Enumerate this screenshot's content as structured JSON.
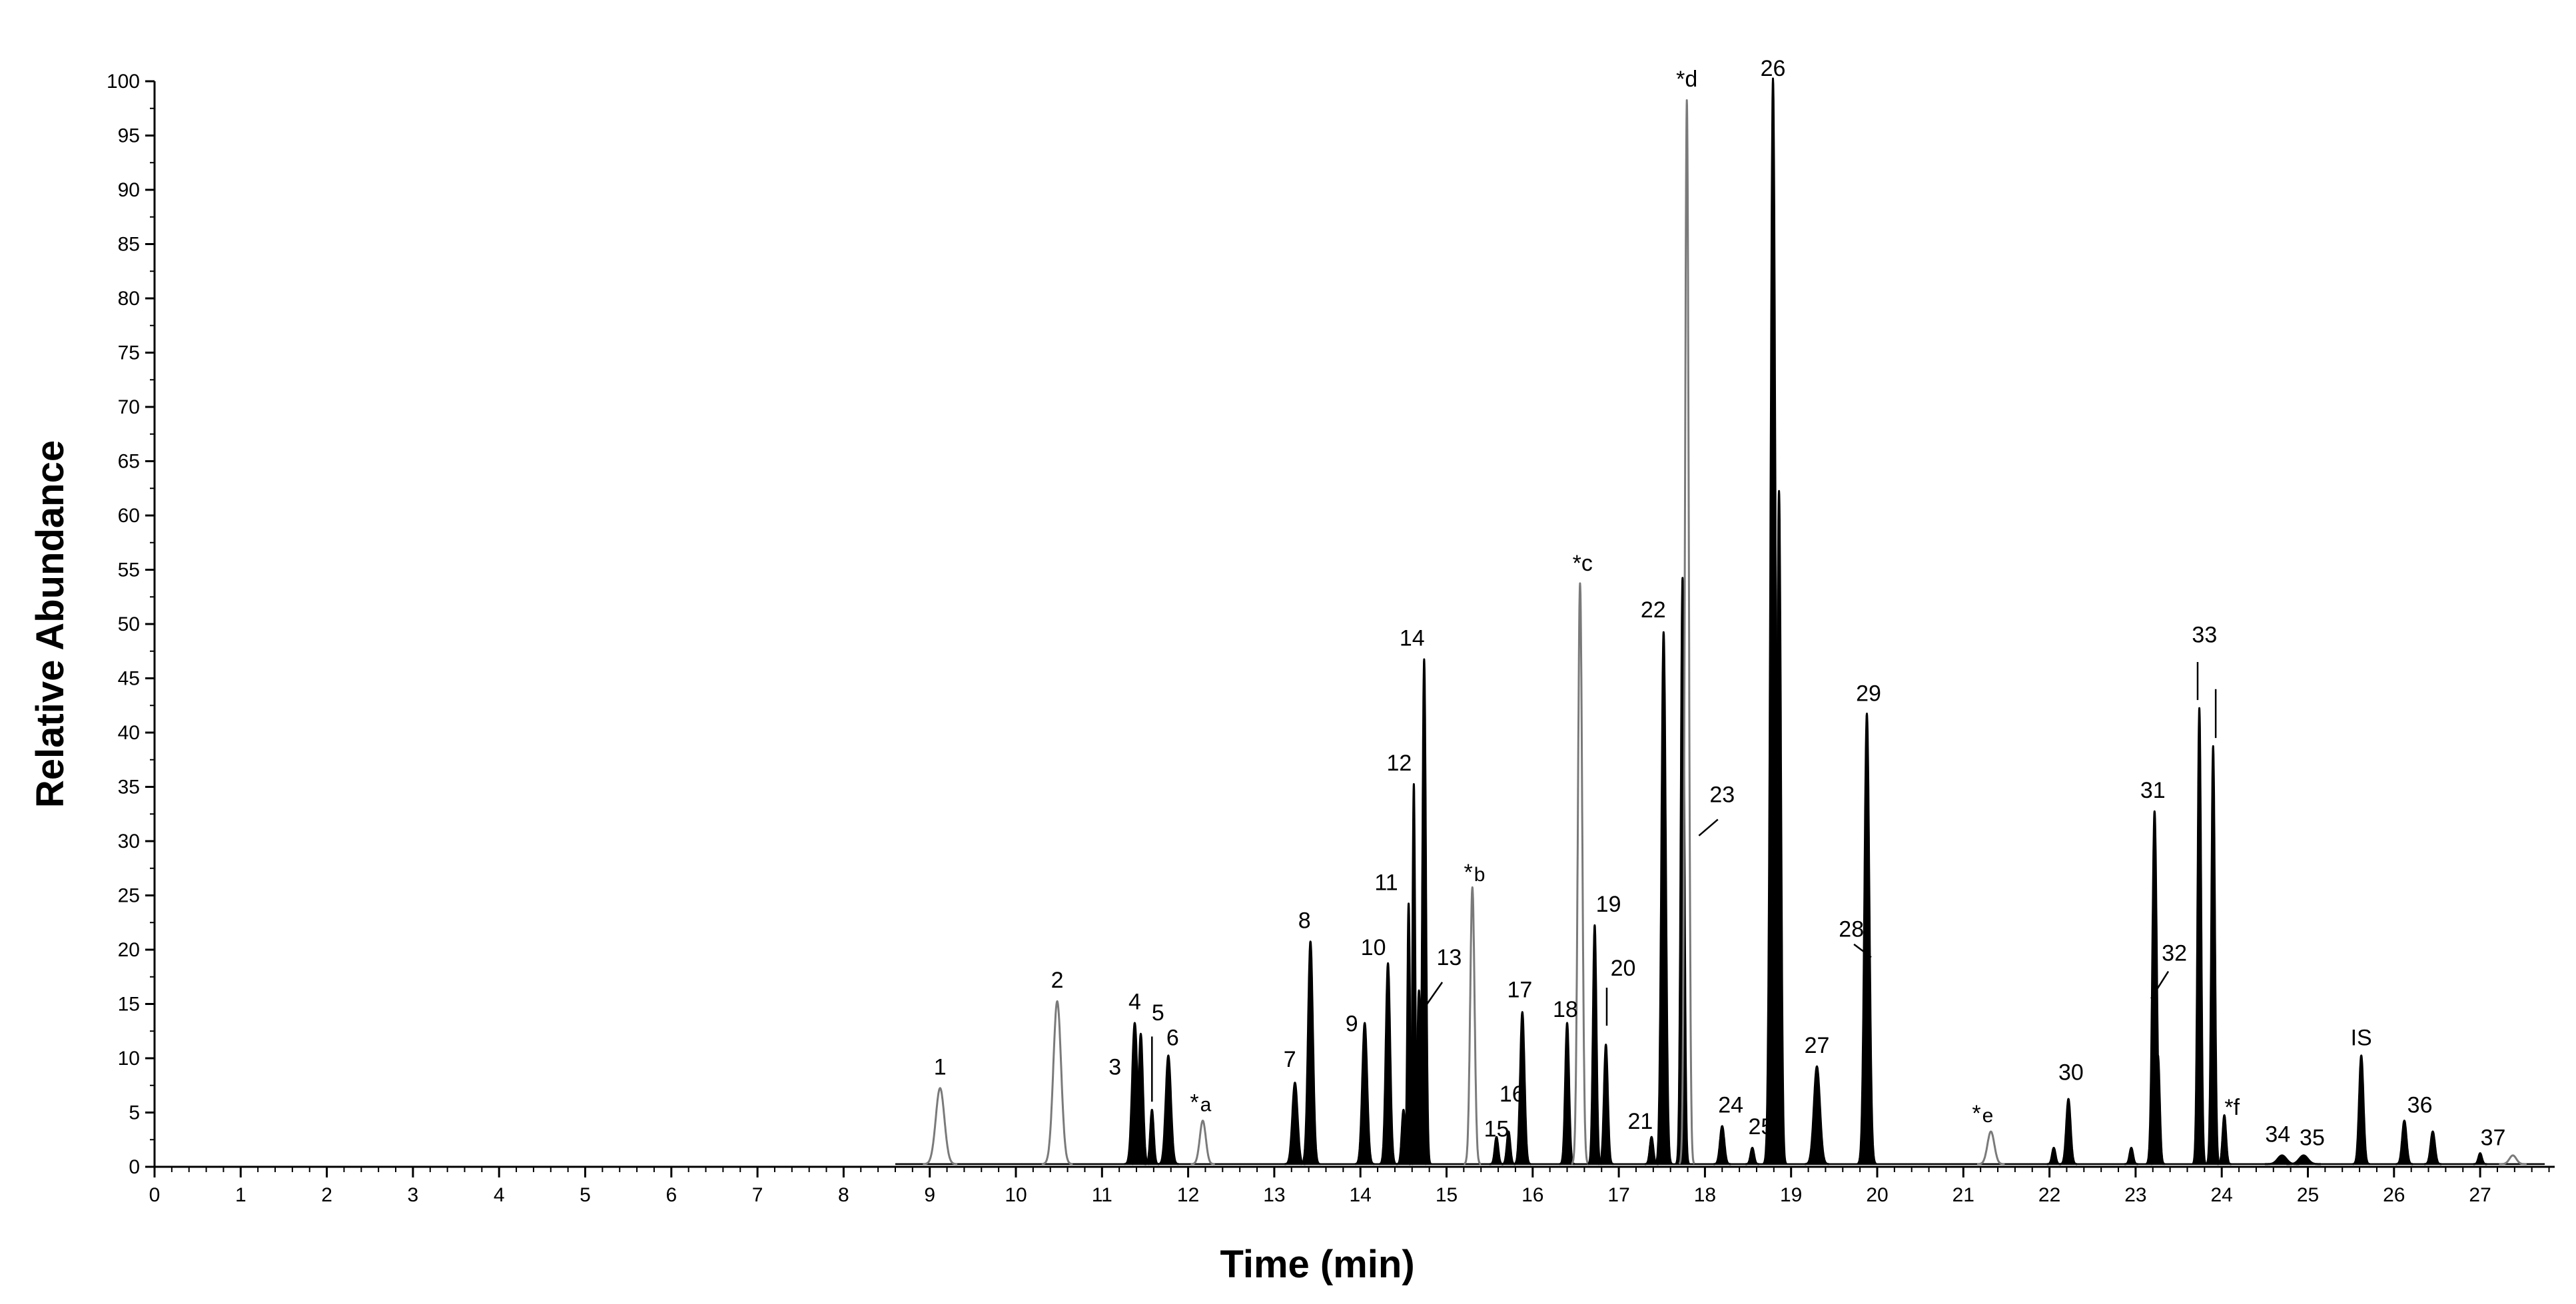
{
  "chart_data": {
    "type": "line",
    "xlabel": "Time (min)",
    "ylabel": "Relative Abundance",
    "xlim": [
      0,
      28
    ],
    "ylim": [
      0,
      100
    ],
    "x_ticks": [
      "0",
      "1",
      "2",
      "3",
      "4",
      "5",
      "6",
      "7",
      "8",
      "9",
      "10",
      "11",
      "12",
      "13",
      "14",
      "15",
      "16",
      "17",
      "18",
      "19",
      "20",
      "21",
      "22",
      "23",
      "24",
      "25",
      "26",
      "27"
    ],
    "y_ticks": [
      "0",
      "5",
      "10",
      "15",
      "20",
      "25",
      "30",
      "35",
      "40",
      "45",
      "50",
      "55",
      "60",
      "65",
      "70",
      "75",
      "80",
      "85",
      "90",
      "95",
      "100"
    ],
    "colors": {
      "asterisk_peaks": "#7a7a7a",
      "compound_peaks": "#000000",
      "axis": "#000000"
    },
    "peaks": [
      {
        "t": 9.12,
        "h": 7,
        "w": 0.05,
        "grey": true
      },
      {
        "t": 10.48,
        "h": 15,
        "w": 0.045,
        "grey": true
      },
      {
        "t": 11.38,
        "h": 13,
        "w": 0.03
      },
      {
        "t": 11.45,
        "h": 12,
        "w": 0.025
      },
      {
        "t": 11.58,
        "h": 5,
        "w": 0.02
      },
      {
        "t": 11.77,
        "h": 10,
        "w": 0.03
      },
      {
        "t": 12.17,
        "h": 4,
        "w": 0.035,
        "grey": true
      },
      {
        "t": 13.24,
        "h": 7.5,
        "w": 0.03
      },
      {
        "t": 13.42,
        "h": 20.5,
        "w": 0.028
      },
      {
        "t": 14.05,
        "h": 13,
        "w": 0.028
      },
      {
        "t": 14.32,
        "h": 18.5,
        "w": 0.025
      },
      {
        "t": 14.5,
        "h": 5,
        "w": 0.02
      },
      {
        "t": 14.56,
        "h": 24,
        "w": 0.015
      },
      {
        "t": 14.62,
        "h": 35,
        "w": 0.015
      },
      {
        "t": 14.68,
        "h": 16,
        "w": 0.02
      },
      {
        "t": 14.74,
        "h": 46.5,
        "w": 0.02
      },
      {
        "t": 15.3,
        "h": 25.5,
        "w": 0.025,
        "grey": true
      },
      {
        "t": 15.58,
        "h": 2.5,
        "w": 0.02
      },
      {
        "t": 15.72,
        "h": 3,
        "w": 0.02
      },
      {
        "t": 15.88,
        "h": 14,
        "w": 0.025
      },
      {
        "t": 16.4,
        "h": 13,
        "w": 0.022
      },
      {
        "t": 16.55,
        "h": 53.5,
        "w": 0.025,
        "grey": true
      },
      {
        "t": 16.72,
        "h": 22,
        "w": 0.02
      },
      {
        "t": 16.85,
        "h": 11,
        "w": 0.022
      },
      {
        "t": 17.38,
        "h": 2.5,
        "w": 0.02
      },
      {
        "t": 17.52,
        "h": 49,
        "w": 0.025
      },
      {
        "t": 17.74,
        "h": 54,
        "w": 0.02
      },
      {
        "t": 17.79,
        "h": 98,
        "w": 0.022,
        "grey": true
      },
      {
        "t": 18.2,
        "h": 3.5,
        "w": 0.025
      },
      {
        "t": 18.55,
        "h": 1.5,
        "w": 0.02
      },
      {
        "t": 18.79,
        "h": 100,
        "w": 0.028
      },
      {
        "t": 18.86,
        "h": 62,
        "w": 0.022
      },
      {
        "t": 19.3,
        "h": 9,
        "w": 0.035
      },
      {
        "t": 19.88,
        "h": 41.5,
        "w": 0.028
      },
      {
        "t": 21.32,
        "h": 3,
        "w": 0.04,
        "grey": true
      },
      {
        "t": 22.05,
        "h": 1.5,
        "w": 0.02
      },
      {
        "t": 22.22,
        "h": 6,
        "w": 0.025
      },
      {
        "t": 22.95,
        "h": 1.5,
        "w": 0.02
      },
      {
        "t": 23.22,
        "h": 32.5,
        "w": 0.025
      },
      {
        "t": 23.26,
        "h": 10,
        "w": 0.02
      },
      {
        "t": 23.74,
        "h": 42,
        "w": 0.02
      },
      {
        "t": 23.9,
        "h": 38.5,
        "w": 0.02
      },
      {
        "t": 24.03,
        "h": 4.5,
        "w": 0.02
      },
      {
        "t": 24.7,
        "h": 0.8,
        "w": 0.05
      },
      {
        "t": 24.95,
        "h": 0.8,
        "w": 0.05
      },
      {
        "t": 25.62,
        "h": 10,
        "w": 0.025
      },
      {
        "t": 26.12,
        "h": 4,
        "w": 0.025
      },
      {
        "t": 26.45,
        "h": 3,
        "w": 0.025
      },
      {
        "t": 27.0,
        "h": 1,
        "w": 0.02
      },
      {
        "t": 27.38,
        "h": 0.8,
        "w": 0.04,
        "grey": true
      }
    ],
    "labels": [
      {
        "text": "1",
        "t": 9.12,
        "v": 8.5
      },
      {
        "text": "2",
        "t": 10.48,
        "v": 16.5
      },
      {
        "text": "3",
        "t": 11.15,
        "v": 8.5
      },
      {
        "text": "4",
        "t": 11.38,
        "v": 14.5
      },
      {
        "text": "5",
        "t": 11.65,
        "v": 13.5
      },
      {
        "text": "6",
        "t": 11.82,
        "v": 11.2
      },
      {
        "text": "*",
        "sub": "a",
        "t": 12.17,
        "v": 5.6
      },
      {
        "text": "7",
        "t": 13.18,
        "v": 9.2
      },
      {
        "text": "8",
        "t": 13.35,
        "v": 22
      },
      {
        "text": "9",
        "t": 13.9,
        "v": 12.5
      },
      {
        "text": "10",
        "t": 14.15,
        "v": 19.5
      },
      {
        "text": "11",
        "t": 14.3,
        "v": 25.5
      },
      {
        "text": "12",
        "t": 14.45,
        "v": 36.5
      },
      {
        "text": "13",
        "t": 15.03,
        "v": 18.6
      },
      {
        "text": "14",
        "t": 14.6,
        "v": 48
      },
      {
        "text": "*",
        "sub": "b",
        "t": 15.35,
        "v": 26.8
      },
      {
        "text": "15",
        "t": 15.58,
        "v": 2.8
      },
      {
        "text": "16",
        "t": 15.76,
        "v": 6
      },
      {
        "text": "17",
        "t": 15.85,
        "v": 15.6
      },
      {
        "text": "18",
        "t": 16.38,
        "v": 13.8
      },
      {
        "text": "*c",
        "t": 16.58,
        "v": 54.9
      },
      {
        "text": "19",
        "t": 16.88,
        "v": 23.5
      },
      {
        "text": "20",
        "t": 17.05,
        "v": 17.6
      },
      {
        "text": "21",
        "t": 17.25,
        "v": 3.5
      },
      {
        "text": "22",
        "t": 17.4,
        "v": 50.6
      },
      {
        "text": "23",
        "t": 18.2,
        "v": 33.6
      },
      {
        "text": "*d",
        "t": 17.79,
        "v": 99.5
      },
      {
        "text": "24",
        "t": 18.3,
        "v": 5
      },
      {
        "text": "25",
        "t": 18.65,
        "v": 3
      },
      {
        "text": "26",
        "t": 18.79,
        "v": 100.5
      },
      {
        "text": "27",
        "t": 19.3,
        "v": 10.5
      },
      {
        "text": "28",
        "t": 19.7,
        "v": 21.2
      },
      {
        "text": "29",
        "t": 19.9,
        "v": 42.9
      },
      {
        "text": "*",
        "sub": "e",
        "t": 21.25,
        "v": 4.6
      },
      {
        "text": "30",
        "t": 22.25,
        "v": 8
      },
      {
        "text": "31",
        "t": 23.2,
        "v": 34
      },
      {
        "text": "32",
        "t": 23.45,
        "v": 19
      },
      {
        "text": "33",
        "t": 23.8,
        "v": 48.3
      },
      {
        "text": "*f",
        "t": 24.12,
        "v": 4.8
      },
      {
        "text": "34",
        "t": 24.65,
        "v": 2.3
      },
      {
        "text": "35",
        "t": 25.05,
        "v": 2
      },
      {
        "text": "IS",
        "t": 25.62,
        "v": 11.2
      },
      {
        "text": "36",
        "t": 26.3,
        "v": 5
      },
      {
        "text": "37",
        "t": 27.15,
        "v": 2
      }
    ],
    "leaders": [
      {
        "t1": 11.58,
        "v1": 6,
        "t2": 11.58,
        "v2": 12
      },
      {
        "t1": 14.95,
        "v1": 17,
        "t2": 14.73,
        "v2": 14.5
      },
      {
        "t1": 16.86,
        "v1": 13,
        "t2": 16.86,
        "v2": 16.5
      },
      {
        "t1": 17.93,
        "v1": 30.5,
        "t2": 18.15,
        "v2": 32
      },
      {
        "t1": 19.73,
        "v1": 20.5,
        "t2": 19.93,
        "v2": 19.3
      },
      {
        "t1": 23.38,
        "v1": 18,
        "t2": 23.18,
        "v2": 15.5
      },
      {
        "t1": 23.72,
        "v1": 43,
        "t2": 23.72,
        "v2": 46.5
      },
      {
        "t1": 23.93,
        "v1": 39.5,
        "t2": 23.93,
        "v2": 44
      }
    ]
  }
}
